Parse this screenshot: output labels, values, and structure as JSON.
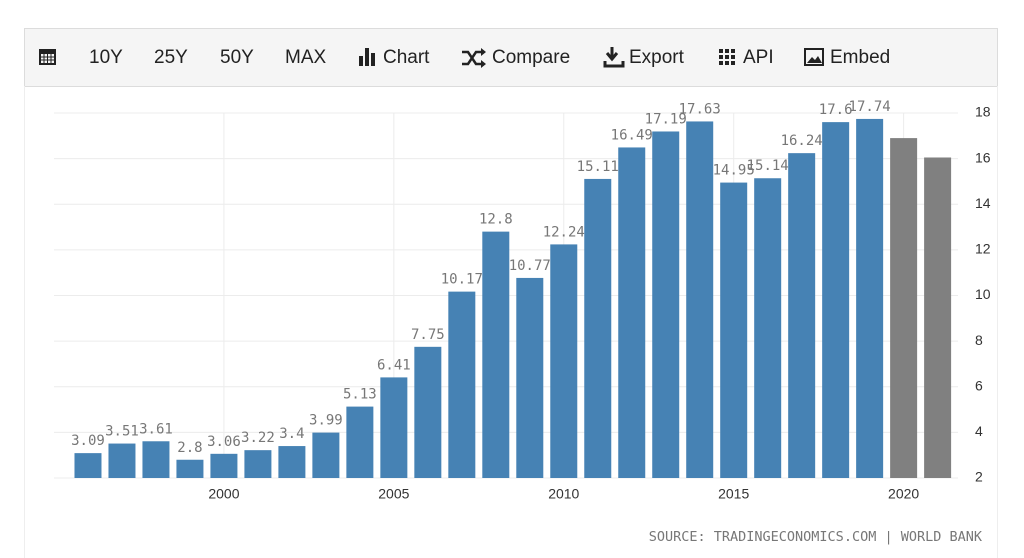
{
  "toolbar": [
    "10Y",
    "25Y",
    "50Y",
    "MAX",
    "Chart",
    "Compare",
    "Export",
    "API",
    "Embed"
  ],
  "source": "SOURCE: TRADINGECONOMICS.COM | WORLD BANK",
  "chart_data": {
    "type": "bar",
    "x": [
      1996,
      1997,
      1998,
      1999,
      2000,
      2001,
      2002,
      2003,
      2004,
      2005,
      2006,
      2007,
      2008,
      2009,
      2010,
      2011,
      2012,
      2013,
      2014,
      2015,
      2016,
      2017,
      2018,
      2019,
      2020,
      2021
    ],
    "series": [
      {
        "color": "#4682b4",
        "data_labels": true,
        "values": [
          3.09,
          3.51,
          3.61,
          2.8,
          3.06,
          3.22,
          3.4,
          3.99,
          5.13,
          6.41,
          7.75,
          10.17,
          12.8,
          10.77,
          12.24,
          15.11,
          16.49,
          17.19,
          17.63,
          14.95,
          15.14,
          16.24,
          17.6,
          17.74,
          null,
          null
        ]
      },
      {
        "color": "#808080",
        "data_labels": false,
        "values": [
          null,
          null,
          null,
          null,
          null,
          null,
          null,
          null,
          null,
          null,
          null,
          null,
          null,
          null,
          null,
          null,
          null,
          null,
          null,
          null,
          null,
          null,
          null,
          null,
          16.9,
          16.05
        ]
      }
    ],
    "xlim": [
      1995,
      2021.6
    ],
    "xticks": [
      2000,
      2005,
      2010,
      2015,
      2020
    ],
    "ylim": [
      2,
      18
    ],
    "yticks": [
      2,
      4,
      6,
      8,
      10,
      12,
      14,
      16,
      18
    ],
    "grid": true,
    "y_axis_side": "right"
  }
}
